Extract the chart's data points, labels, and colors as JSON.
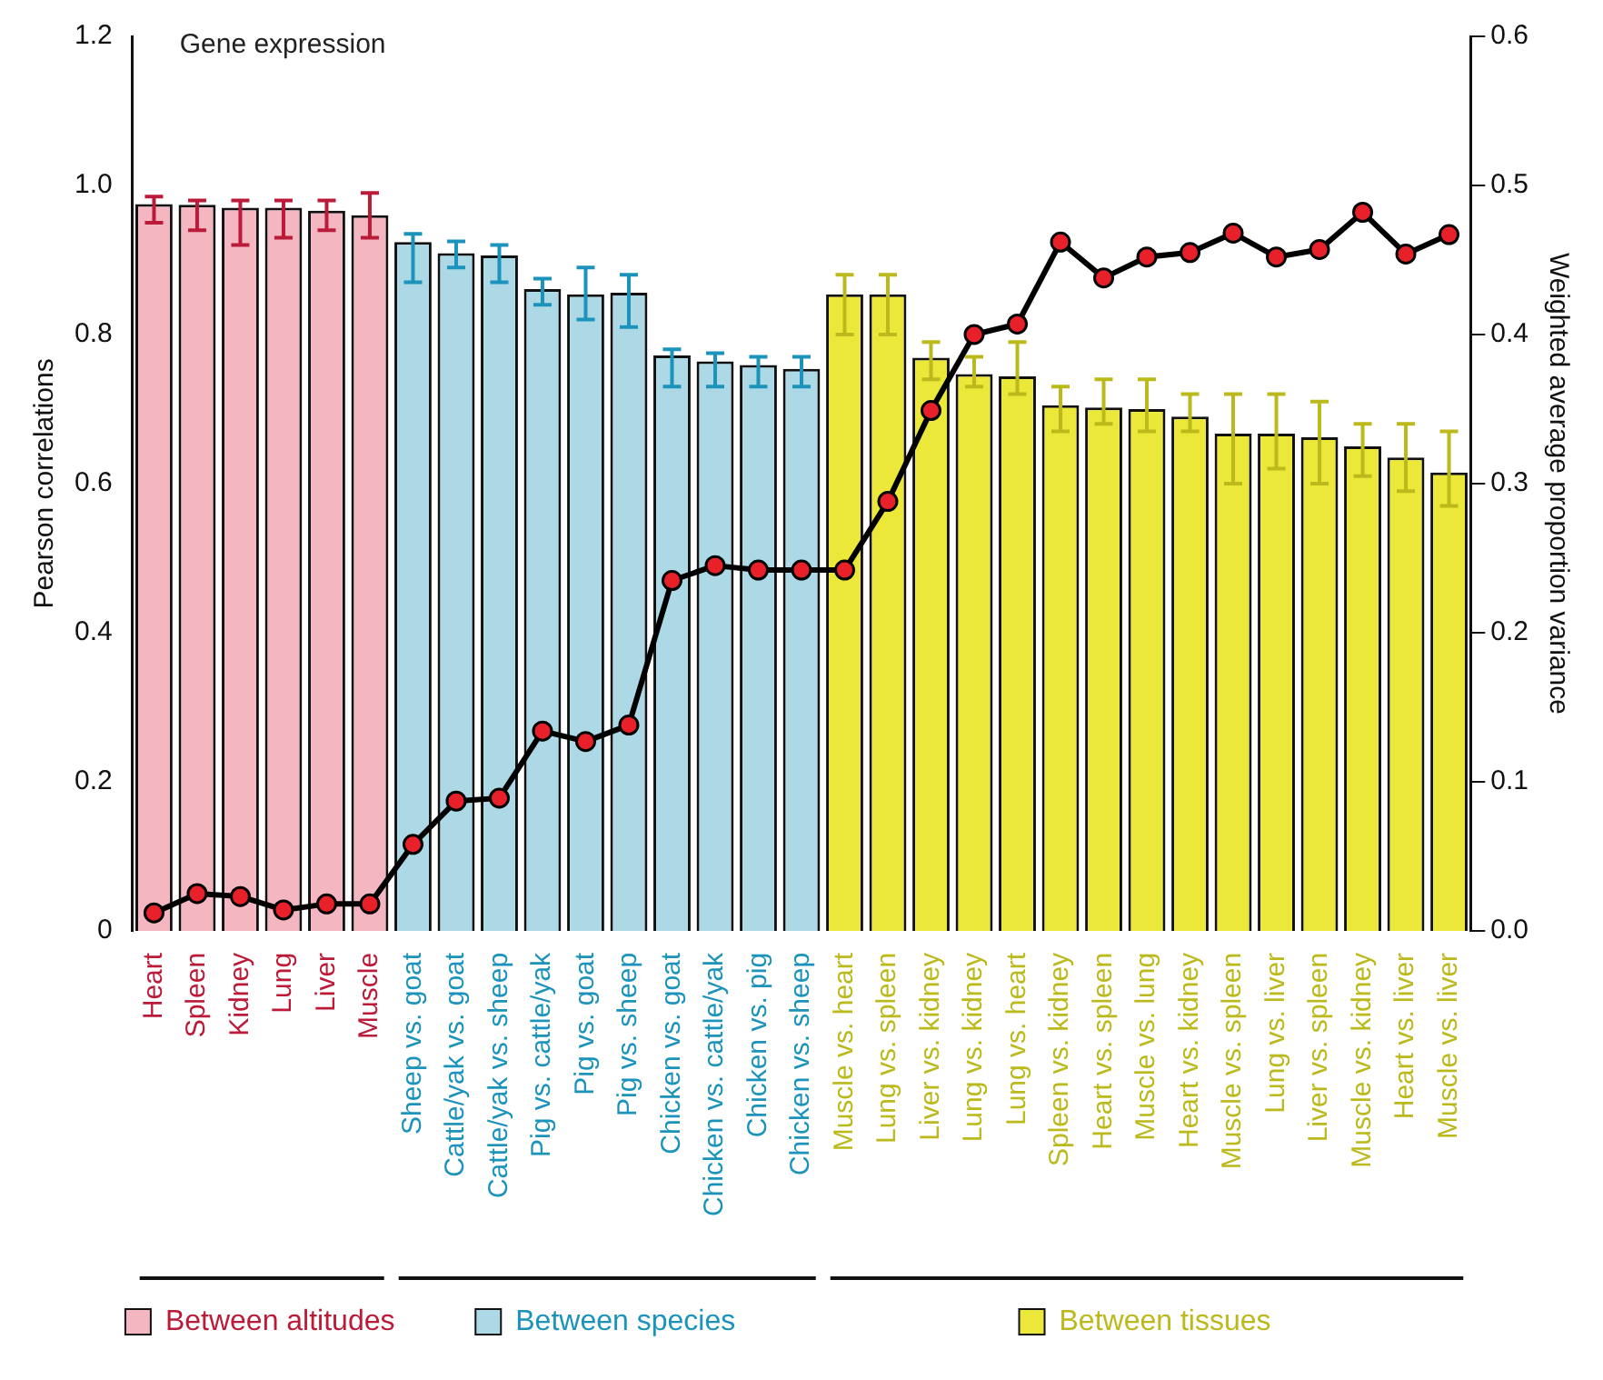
{
  "chart_data": {
    "type": "bar",
    "title": "Gene expression",
    "ylabel": "Pearson correlations",
    "y2label": "Weighted average proportion variance",
    "categories": [
      "Heart",
      "Spleen",
      "Kidney",
      "Lung",
      "Liver",
      "Muscle",
      "Sheep vs. goat",
      "Cattle/yak vs. goat",
      "Cattle/yak vs. sheep",
      "Pig vs. cattle/yak",
      "Pig vs. goat",
      "Pig vs. sheep",
      "Chicken vs. goat",
      "Chicken vs. cattle/yak",
      "Chicken vs. pig",
      "Chicken vs. sheep",
      "Muscle vs. heart",
      "Lung vs. spleen",
      "Liver vs. kidney",
      "Lung vs. kidney",
      "Lung vs. heart",
      "Spleen vs. kidney",
      "Heart vs. spleen",
      "Muscle vs. lung",
      "Heart vs. kidney",
      "Muscle vs. spleen",
      "Lung vs. liver",
      "Liver vs. spleen",
      "Muscle vs. kidney",
      "Heart vs. liver",
      "Muscle vs. liver"
    ],
    "series": [
      {
        "name": "Between altitudes",
        "color": "#f4b6c1",
        "values": [
          0.975,
          0.974,
          0.97,
          0.97,
          0.966,
          0.96,
          null,
          null,
          null,
          null,
          null,
          null,
          null,
          null,
          null,
          null,
          null,
          null,
          null,
          null,
          null,
          null,
          null,
          null,
          null,
          null,
          null,
          null,
          null,
          null,
          null
        ],
        "errors": [
          [
            0.95,
            0.985
          ],
          [
            0.94,
            0.98
          ],
          [
            0.92,
            0.98
          ],
          [
            0.93,
            0.98
          ],
          [
            0.94,
            0.98
          ],
          [
            0.93,
            0.99
          ],
          null,
          null,
          null,
          null,
          null,
          null,
          null,
          null,
          null,
          null,
          null,
          null,
          null,
          null,
          null,
          null,
          null,
          null,
          null,
          null,
          null,
          null,
          null,
          null,
          null
        ]
      },
      {
        "name": "Between species",
        "color": "#add8e6",
        "values": [
          null,
          null,
          null,
          null,
          null,
          null,
          0.924,
          0.909,
          0.906,
          0.861,
          0.854,
          0.856,
          0.772,
          0.764,
          0.759,
          0.754,
          null,
          null,
          null,
          null,
          null,
          null,
          null,
          null,
          null,
          null,
          null,
          null,
          null,
          null,
          null
        ],
        "errors": [
          null,
          null,
          null,
          null,
          null,
          null,
          [
            0.87,
            0.935
          ],
          [
            0.89,
            0.925
          ],
          [
            0.87,
            0.92
          ],
          [
            0.84,
            0.875
          ],
          [
            0.82,
            0.89
          ],
          [
            0.81,
            0.88
          ],
          [
            0.73,
            0.78
          ],
          [
            0.73,
            0.775
          ],
          [
            0.73,
            0.77
          ],
          [
            0.73,
            0.77
          ],
          null,
          null,
          null,
          null,
          null,
          null,
          null,
          null,
          null,
          null,
          null,
          null,
          null,
          null,
          null
        ]
      },
      {
        "name": "Between tissues",
        "color": "#ebe83a",
        "values": [
          null,
          null,
          null,
          null,
          null,
          null,
          null,
          null,
          null,
          null,
          null,
          null,
          null,
          null,
          null,
          null,
          0.854,
          0.854,
          0.769,
          0.747,
          0.744,
          0.705,
          0.702,
          0.7,
          0.69,
          0.667,
          0.667,
          0.662,
          0.65,
          0.635,
          0.615
        ],
        "errors": [
          null,
          null,
          null,
          null,
          null,
          null,
          null,
          null,
          null,
          null,
          null,
          null,
          null,
          null,
          null,
          null,
          [
            0.8,
            0.88
          ],
          [
            0.8,
            0.88
          ],
          [
            0.74,
            0.79
          ],
          [
            0.73,
            0.77
          ],
          [
            0.72,
            0.79
          ],
          [
            0.67,
            0.73
          ],
          [
            0.68,
            0.74
          ],
          [
            0.67,
            0.74
          ],
          [
            0.67,
            0.72
          ],
          [
            0.6,
            0.72
          ],
          [
            0.62,
            0.72
          ],
          [
            0.6,
            0.71
          ],
          [
            0.61,
            0.68
          ],
          [
            0.59,
            0.68
          ],
          [
            0.57,
            0.67
          ]
        ]
      },
      {
        "type": "line",
        "axis": "y2",
        "color": "#000000",
        "colors": [
          "#e8202a",
          "#e8202a",
          "#e8202a",
          "#e8202a",
          "#e8202a",
          "#e8202a",
          "#e8202a",
          "#e8202a",
          "#e8202a",
          "#e8202a",
          "#e8202a",
          "#e8202a",
          "#e8202a",
          "#e8202a",
          "#e8202a",
          "#e8202a",
          "#e8202a",
          "#e8202a",
          "#e8202a",
          "#e8202a",
          "#e8202a",
          "#e8202a",
          "#e8202a",
          "#e8202a",
          "#e8202a",
          "#e8202a",
          "#e8202a",
          "#e8202a",
          "#e8202a",
          "#e8202a",
          "#e8202a"
        ],
        "marker": "circle",
        "line_style": "solid",
        "values": [
          0.012,
          0.025,
          0.023,
          0.014,
          0.018,
          0.018,
          0.058,
          0.087,
          0.089,
          0.134,
          0.127,
          0.138,
          0.235,
          0.245,
          0.242,
          0.242,
          0.242,
          0.288,
          0.349,
          0.4,
          0.407,
          0.462,
          0.438,
          0.452,
          0.455,
          0.468,
          0.452,
          0.457,
          0.482,
          0.454,
          0.467
        ]
      }
    ],
    "ylim": [
      0,
      1.2
    ],
    "yticks": [
      0,
      0.2,
      0.4,
      0.6,
      0.8,
      {
        "value": 1,
        "label": "1.0"
      },
      1.2
    ],
    "y2lim": [
      0,
      0.6
    ],
    "y2ticks": [
      {
        "value": 0,
        "label": "0.0"
      },
      0.1,
      0.2,
      0.3,
      0.4,
      0.5,
      0.6
    ],
    "legend": "bottom",
    "grid": false
  }
}
